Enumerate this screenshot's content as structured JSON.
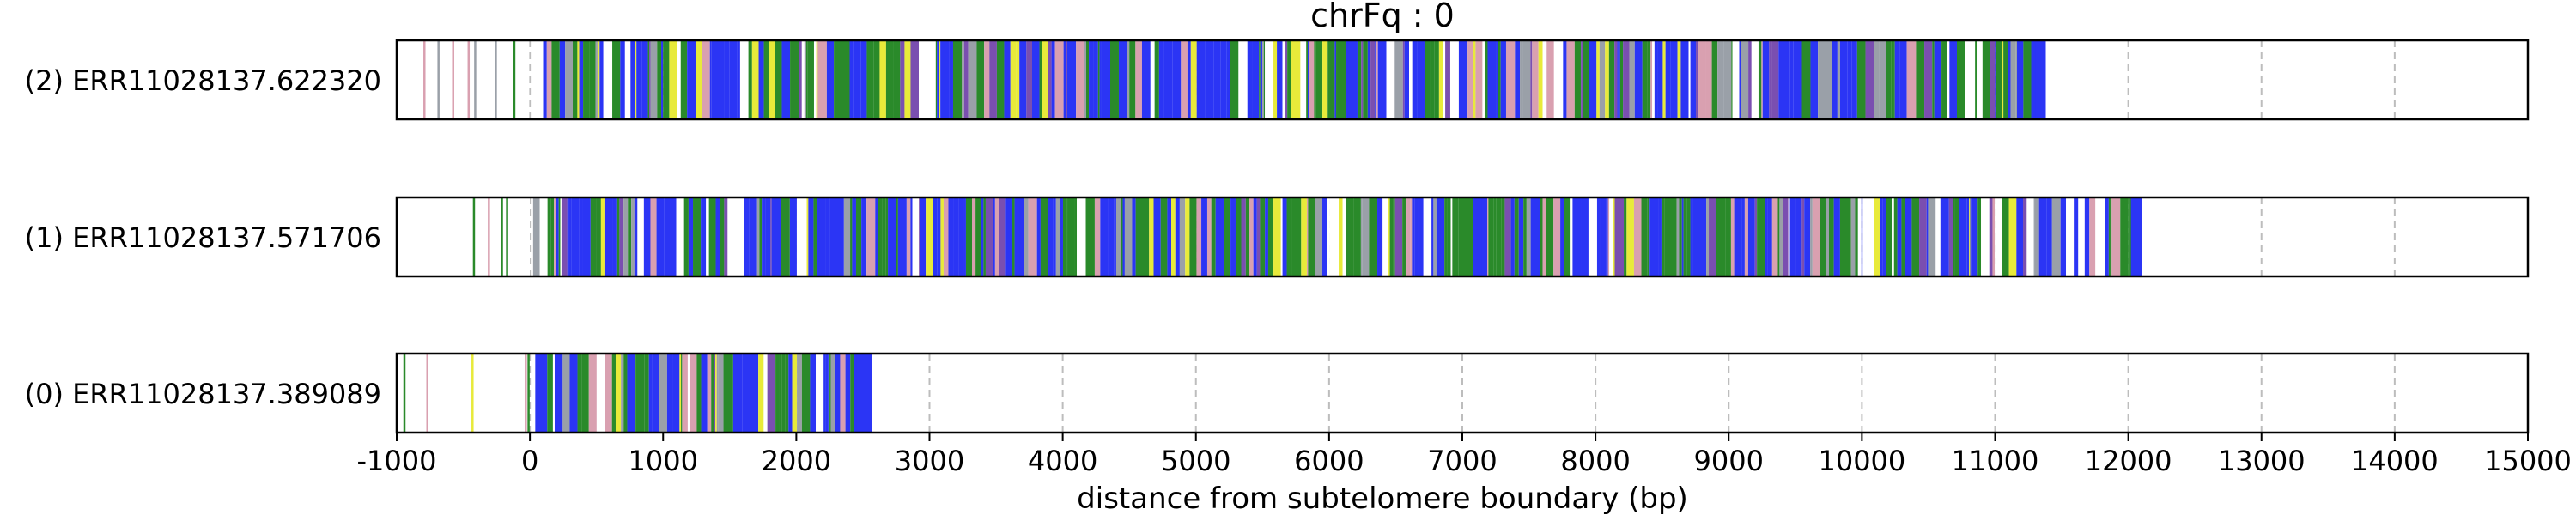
{
  "chart_data": {
    "type": "barcode",
    "title": "chrFq : 0",
    "xlabel": "distance from subtelomere boundary (bp)",
    "ylabel": "",
    "xlim": [
      -1000,
      15000
    ],
    "xticks": [
      -1000,
      0,
      1000,
      2000,
      3000,
      4000,
      5000,
      6000,
      7000,
      8000,
      9000,
      10000,
      11000,
      12000,
      13000,
      14000,
      15000
    ],
    "grid": "vertical dashed lines at each x tick",
    "colors": {
      "blue": "#2b35f5",
      "green": "#2a8a2a",
      "yellow": "#e8ea3a",
      "pink": "#d9a0b0",
      "purple": "#7a4fb0",
      "gray": "#9aa0a8",
      "frame": "#000000",
      "grid": "#bdbdbd"
    },
    "rows": [
      {
        "label": "(2) ERR11028137.622320",
        "start": -800,
        "end": 11380,
        "dense_start": 0
      },
      {
        "label": "(1) ERR11028137.571706",
        "start": -450,
        "end": 12100,
        "dense_start": 0
      },
      {
        "label": "(0) ERR11028137.389089",
        "start": -950,
        "end": 2570,
        "dense_start": 0
      }
    ]
  }
}
